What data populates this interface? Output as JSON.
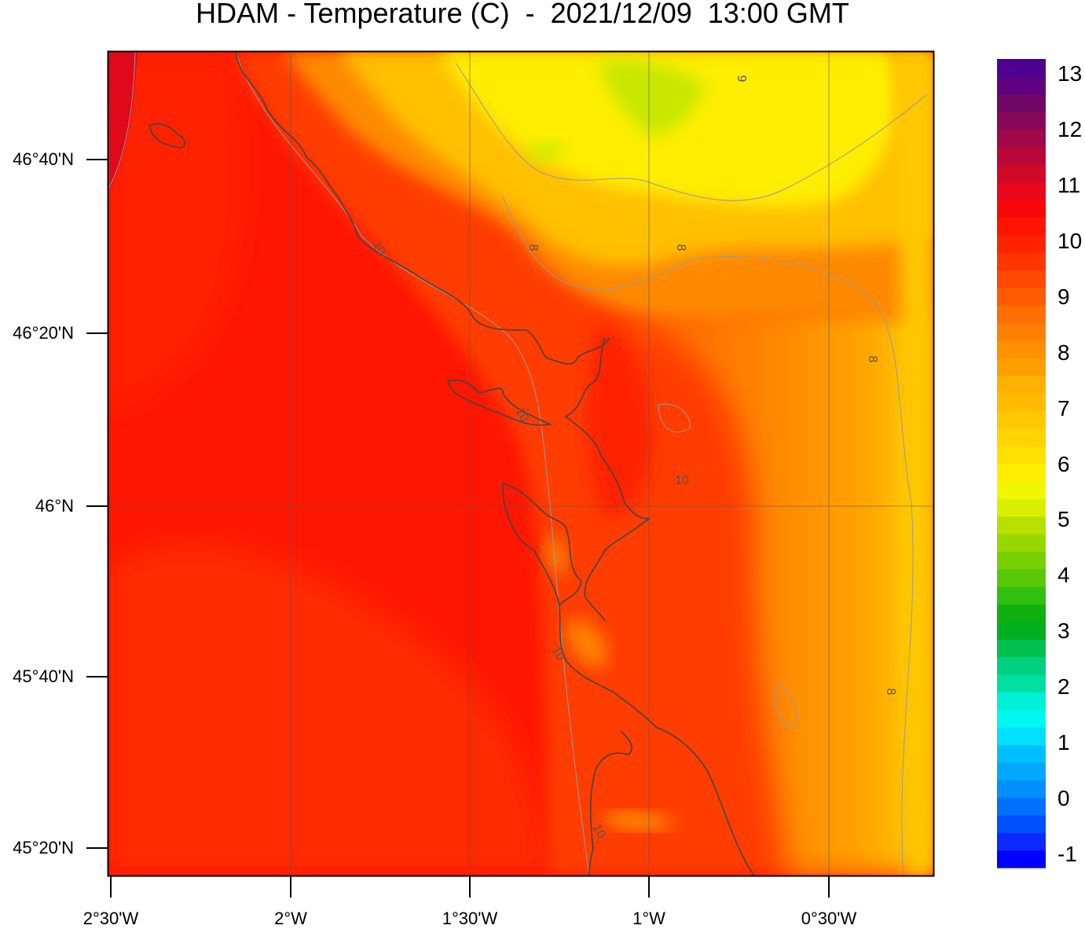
{
  "title": "HDAM - Temperature (C)  -  2021/12/09  13:00 GMT",
  "variable": "Temperature",
  "unit": "C",
  "axes": {
    "latitude_labels": [
      "46°40'N",
      "46°20'N",
      "46°N",
      "45°40'N",
      "45°20'N"
    ],
    "longitude_labels": [
      "2°30'W",
      "2°W",
      "1°30'W",
      "1°W",
      "0°30'W"
    ]
  },
  "colorbar": {
    "labels": [
      "13",
      "12",
      "11",
      "10",
      "9",
      "8",
      "7",
      "6",
      "5",
      "4",
      "3",
      "2",
      "1",
      "0",
      "-1"
    ],
    "min": -1,
    "max": 13,
    "colors": [
      "#0000ff",
      "#0a2aff",
      "#0050ff",
      "#0070ff",
      "#0090ff",
      "#00a8ff",
      "#00c0ff",
      "#00e0ff",
      "#00f8f0",
      "#00f0d8",
      "#00e0a0",
      "#00d080",
      "#00c050",
      "#00b020",
      "#10b010",
      "#30c010",
      "#58c808",
      "#78d000",
      "#98d800",
      "#b8e000",
      "#d8f000",
      "#f0f800",
      "#ffee00",
      "#ffe000",
      "#ffd400",
      "#ffc800",
      "#ffbc00",
      "#ffb000",
      "#ffa000",
      "#ff9000",
      "#ff8000",
      "#ff6e00",
      "#ff5a00",
      "#ff4800",
      "#ff3600",
      "#ff2400",
      "#ff1400",
      "#f80808",
      "#e8081a",
      "#d00828",
      "#b80838",
      "#a00848",
      "#880858",
      "#700868",
      "#600080",
      "#500090"
    ]
  },
  "contour_labels": [
    "8",
    "8",
    "8",
    "8",
    "9",
    "10",
    "10",
    "10",
    "10",
    "10"
  ],
  "colors": {
    "sea": "#ff1a00",
    "coast_line": "#444444",
    "contour_line": "#999999"
  }
}
